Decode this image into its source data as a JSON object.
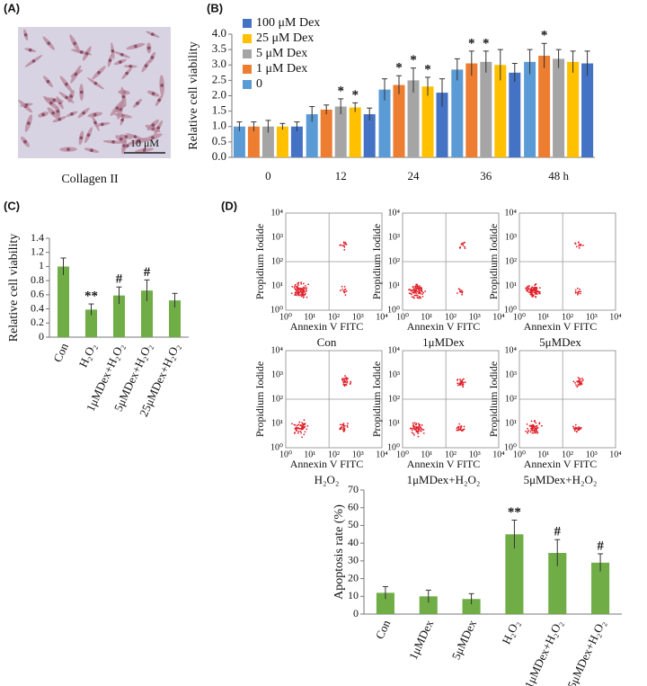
{
  "panel_labels": [
    "(A)",
    "(B)",
    "(C)",
    "(D)"
  ],
  "micrograph": {
    "scale_label": "10 μM",
    "caption": "Collagen II"
  },
  "flow": {
    "x_label": "Annexin V FITC",
    "y_label": "Propidium Iodide",
    "ticks": [
      "10⁰",
      "10¹",
      "10²",
      "10³",
      "10⁴"
    ],
    "plots": [
      {
        "caption": "Con"
      },
      {
        "caption": "1μMDex"
      },
      {
        "caption": "5μMDex"
      },
      {
        "caption": "H₂O₂"
      },
      {
        "caption": "1μMDex+H₂O₂"
      },
      {
        "caption": "5μMDex+H₂O₂"
      }
    ]
  },
  "chart_data": [
    {
      "type": "bar",
      "y_label": "Relative cell viability",
      "legend": "upper-left",
      "categories": [
        "0",
        "12",
        "24",
        "36",
        "48 h"
      ],
      "series": [
        {
          "name": "100 μM Dex",
          "color": "#4472c4",
          "values": [
            1.0,
            1.4,
            2.1,
            2.75,
            3.05
          ],
          "errors": [
            0.15,
            0.2,
            0.45,
            0.3,
            0.4
          ],
          "annotations": [
            null,
            null,
            null,
            null,
            null
          ]
        },
        {
          "name": "25 μM Dex",
          "color": "#ffc000",
          "values": [
            1.0,
            1.62,
            2.3,
            3.0,
            3.1
          ],
          "errors": [
            0.1,
            0.15,
            0.3,
            0.5,
            0.35
          ],
          "annotations": [
            null,
            "*",
            "*",
            null,
            null
          ]
        },
        {
          "name": "5 μM Dex",
          "color": "#a5a5a5",
          "values": [
            1.0,
            1.65,
            2.5,
            3.1,
            3.2
          ],
          "errors": [
            0.2,
            0.25,
            0.4,
            0.35,
            0.3
          ],
          "annotations": [
            null,
            "*",
            "*",
            "*",
            null
          ]
        },
        {
          "name": "1 μM Dex",
          "color": "#ed7d31",
          "values": [
            1.0,
            1.55,
            2.35,
            3.05,
            3.3
          ],
          "errors": [
            0.15,
            0.15,
            0.3,
            0.4,
            0.4
          ],
          "annotations": [
            null,
            null,
            "*",
            "*",
            "*"
          ]
        },
        {
          "name": "0",
          "color": "#5b9bd5",
          "values": [
            1.0,
            1.4,
            2.2,
            2.85,
            3.1
          ],
          "errors": [
            0.15,
            0.25,
            0.35,
            0.35,
            0.4
          ],
          "annotations": [
            null,
            null,
            null,
            null,
            null
          ]
        }
      ],
      "ylim": [
        0,
        4
      ],
      "yticks": [
        {
          "value": 0,
          "label": "0.0"
        },
        {
          "value": 0.5,
          "label": "0.5"
        },
        {
          "value": 1,
          "label": "1.0"
        },
        {
          "value": 1.5,
          "label": "1.5"
        },
        {
          "value": 2,
          "label": "2.0"
        },
        {
          "value": 2.5,
          "label": "2.5"
        },
        {
          "value": 3,
          "label": "3.0"
        },
        {
          "value": 3.5,
          "label": "3.5"
        },
        {
          "value": 4,
          "label": "4.0"
        }
      ]
    },
    {
      "type": "bar",
      "y_label": "Relative cell viability",
      "color": "#70ad47",
      "categories": [
        "Con",
        "H₂O₂",
        "1μMDex+H₂O₂",
        "5μMDex+H₂O₂",
        "25μMDex+H₂O₂"
      ],
      "values": [
        1.0,
        0.39,
        0.59,
        0.66,
        0.52
      ],
      "errors": [
        0.12,
        0.08,
        0.12,
        0.15,
        0.1
      ],
      "annotations": [
        null,
        "**",
        "#",
        "#",
        null
      ],
      "ylim": [
        0,
        1.4
      ],
      "yticks": [
        0,
        0.2,
        0.4,
        0.6,
        0.8,
        1,
        1.2,
        1.4
      ]
    },
    {
      "type": "bar",
      "y_label": "Apoptosis rate (%)",
      "color": "#70ad47",
      "categories": [
        "Con",
        "1μMDex",
        "5μMDex",
        "H₂O₂",
        "1μMDex+H₂O₂",
        "5μMDex+H₂O₂"
      ],
      "values": [
        12,
        10,
        8.5,
        45,
        34.5,
        29
      ],
      "errors": [
        3.5,
        3.5,
        3,
        8,
        7.5,
        5
      ],
      "annotations": [
        null,
        null,
        null,
        "**",
        "#",
        "#"
      ],
      "ylim": [
        0,
        70
      ],
      "yticks": [
        0,
        10,
        20,
        30,
        40,
        50,
        60,
        70
      ]
    }
  ]
}
